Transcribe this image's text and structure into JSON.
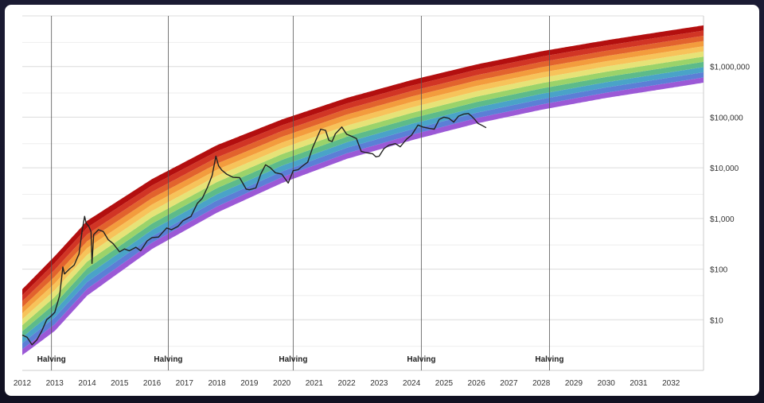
{
  "chart_data": {
    "type": "area",
    "y_scale": "log",
    "ylim": [
      1,
      10000000
    ],
    "xlim": [
      2012.0,
      2033.0
    ],
    "grid": true,
    "y_tick_labels": [
      {
        "value": 10,
        "label": "$10"
      },
      {
        "value": 100,
        "label": "$100"
      },
      {
        "value": 1000,
        "label": "$1,000"
      },
      {
        "value": 10000,
        "label": "$10,000"
      },
      {
        "value": 100000,
        "label": "$100,000"
      },
      {
        "value": 1000000,
        "label": "$1,000,000"
      }
    ],
    "x_tick_labels": [
      "2012",
      "2013",
      "2014",
      "2015",
      "2016",
      "2017",
      "2018",
      "2019",
      "2020",
      "2021",
      "2022",
      "2023",
      "2024",
      "2025",
      "2026",
      "2027",
      "2028",
      "2029",
      "2030",
      "2031",
      "2032"
    ],
    "halvings": [
      {
        "x": 2012.9,
        "label": "Halving"
      },
      {
        "x": 2016.5,
        "label": "Halving"
      },
      {
        "x": 2020.35,
        "label": "Halving"
      },
      {
        "x": 2024.3,
        "label": "Halving"
      },
      {
        "x": 2028.25,
        "label": "Halving"
      }
    ],
    "rainbow_bands": {
      "colors": [
        "#9b59d6",
        "#5b7fd6",
        "#4aa3c8",
        "#5dbb8a",
        "#9bd36a",
        "#e6e377",
        "#f7c35a",
        "#f39c3d",
        "#e2632d",
        "#d13525",
        "#b30f0f"
      ],
      "bottom_edge": [
        {
          "x": 2012.0,
          "y": 2
        },
        {
          "x": 2013.0,
          "y": 6
        },
        {
          "x": 2014.0,
          "y": 30
        },
        {
          "x": 2016.0,
          "y": 250
        },
        {
          "x": 2018.0,
          "y": 1300
        },
        {
          "x": 2020.0,
          "y": 5000
        },
        {
          "x": 2022.0,
          "y": 15000
        },
        {
          "x": 2024.0,
          "y": 35000
        },
        {
          "x": 2026.0,
          "y": 75000
        },
        {
          "x": 2028.0,
          "y": 140000
        },
        {
          "x": 2030.0,
          "y": 240000
        },
        {
          "x": 2032.0,
          "y": 380000
        },
        {
          "x": 2033.0,
          "y": 480000
        }
      ],
      "top_edge": [
        {
          "x": 2012.0,
          "y": 40
        },
        {
          "x": 2013.0,
          "y": 180
        },
        {
          "x": 2014.0,
          "y": 900
        },
        {
          "x": 2016.0,
          "y": 6000
        },
        {
          "x": 2018.0,
          "y": 28000
        },
        {
          "x": 2020.0,
          "y": 90000
        },
        {
          "x": 2022.0,
          "y": 240000
        },
        {
          "x": 2024.0,
          "y": 540000
        },
        {
          "x": 2026.0,
          "y": 1100000
        },
        {
          "x": 2028.0,
          "y": 2000000
        },
        {
          "x": 2030.0,
          "y": 3300000
        },
        {
          "x": 2032.0,
          "y": 5200000
        },
        {
          "x": 2033.0,
          "y": 6500000
        }
      ]
    },
    "series": [
      {
        "color": "#222222",
        "points": [
          [
            2012.0,
            5
          ],
          [
            2012.15,
            4.5
          ],
          [
            2012.3,
            3.2
          ],
          [
            2012.45,
            4.0
          ],
          [
            2012.6,
            6
          ],
          [
            2012.75,
            10
          ],
          [
            2012.9,
            12
          ],
          [
            2013.0,
            14
          ],
          [
            2013.15,
            30
          ],
          [
            2013.25,
            110
          ],
          [
            2013.3,
            80
          ],
          [
            2013.45,
            100
          ],
          [
            2013.6,
            120
          ],
          [
            2013.75,
            200
          ],
          [
            2013.85,
            600
          ],
          [
            2013.92,
            1100
          ],
          [
            2013.97,
            800
          ],
          [
            2014.05,
            700
          ],
          [
            2014.12,
            550
          ],
          [
            2014.15,
            130
          ],
          [
            2014.2,
            480
          ],
          [
            2014.35,
            600
          ],
          [
            2014.5,
            550
          ],
          [
            2014.65,
            380
          ],
          [
            2014.8,
            320
          ],
          [
            2015.0,
            220
          ],
          [
            2015.15,
            250
          ],
          [
            2015.3,
            230
          ],
          [
            2015.5,
            270
          ],
          [
            2015.65,
            230
          ],
          [
            2015.85,
            360
          ],
          [
            2016.0,
            420
          ],
          [
            2016.2,
            430
          ],
          [
            2016.45,
            650
          ],
          [
            2016.6,
            600
          ],
          [
            2016.8,
            700
          ],
          [
            2016.95,
            900
          ],
          [
            2017.2,
            1100
          ],
          [
            2017.4,
            2000
          ],
          [
            2017.55,
            2500
          ],
          [
            2017.7,
            4000
          ],
          [
            2017.85,
            7000
          ],
          [
            2017.97,
            17000
          ],
          [
            2018.05,
            11000
          ],
          [
            2018.15,
            9000
          ],
          [
            2018.3,
            7500
          ],
          [
            2018.5,
            6500
          ],
          [
            2018.7,
            6400
          ],
          [
            2018.9,
            3800
          ],
          [
            2019.0,
            3700
          ],
          [
            2019.2,
            4000
          ],
          [
            2019.35,
            7500
          ],
          [
            2019.5,
            11500
          ],
          [
            2019.65,
            10000
          ],
          [
            2019.8,
            8000
          ],
          [
            2020.0,
            7500
          ],
          [
            2020.2,
            5000
          ],
          [
            2020.35,
            8800
          ],
          [
            2020.5,
            9200
          ],
          [
            2020.65,
            11000
          ],
          [
            2020.8,
            13000
          ],
          [
            2020.95,
            25000
          ],
          [
            2021.05,
            35000
          ],
          [
            2021.2,
            58000
          ],
          [
            2021.35,
            55000
          ],
          [
            2021.45,
            35000
          ],
          [
            2021.55,
            33000
          ],
          [
            2021.65,
            47000
          ],
          [
            2021.85,
            64000
          ],
          [
            2022.0,
            46000
          ],
          [
            2022.15,
            42000
          ],
          [
            2022.3,
            38000
          ],
          [
            2022.45,
            21000
          ],
          [
            2022.6,
            20000
          ],
          [
            2022.8,
            19000
          ],
          [
            2022.9,
            16500
          ],
          [
            2023.0,
            17000
          ],
          [
            2023.15,
            24000
          ],
          [
            2023.3,
            28000
          ],
          [
            2023.5,
            30000
          ],
          [
            2023.65,
            26000
          ],
          [
            2023.85,
            37000
          ],
          [
            2024.0,
            44000
          ],
          [
            2024.2,
            70000
          ],
          [
            2024.35,
            64000
          ],
          [
            2024.55,
            60000
          ],
          [
            2024.7,
            58000
          ],
          [
            2024.85,
            90000
          ],
          [
            2025.0,
            100000
          ],
          [
            2025.15,
            95000
          ],
          [
            2025.3,
            80000
          ],
          [
            2025.45,
            105000
          ],
          [
            2025.6,
            115000
          ],
          [
            2025.75,
            118000
          ],
          [
            2025.85,
            105000
          ],
          [
            2025.95,
            90000
          ],
          [
            2026.05,
            75000
          ],
          [
            2026.15,
            70000
          ],
          [
            2026.3,
            62000
          ]
        ]
      }
    ]
  }
}
